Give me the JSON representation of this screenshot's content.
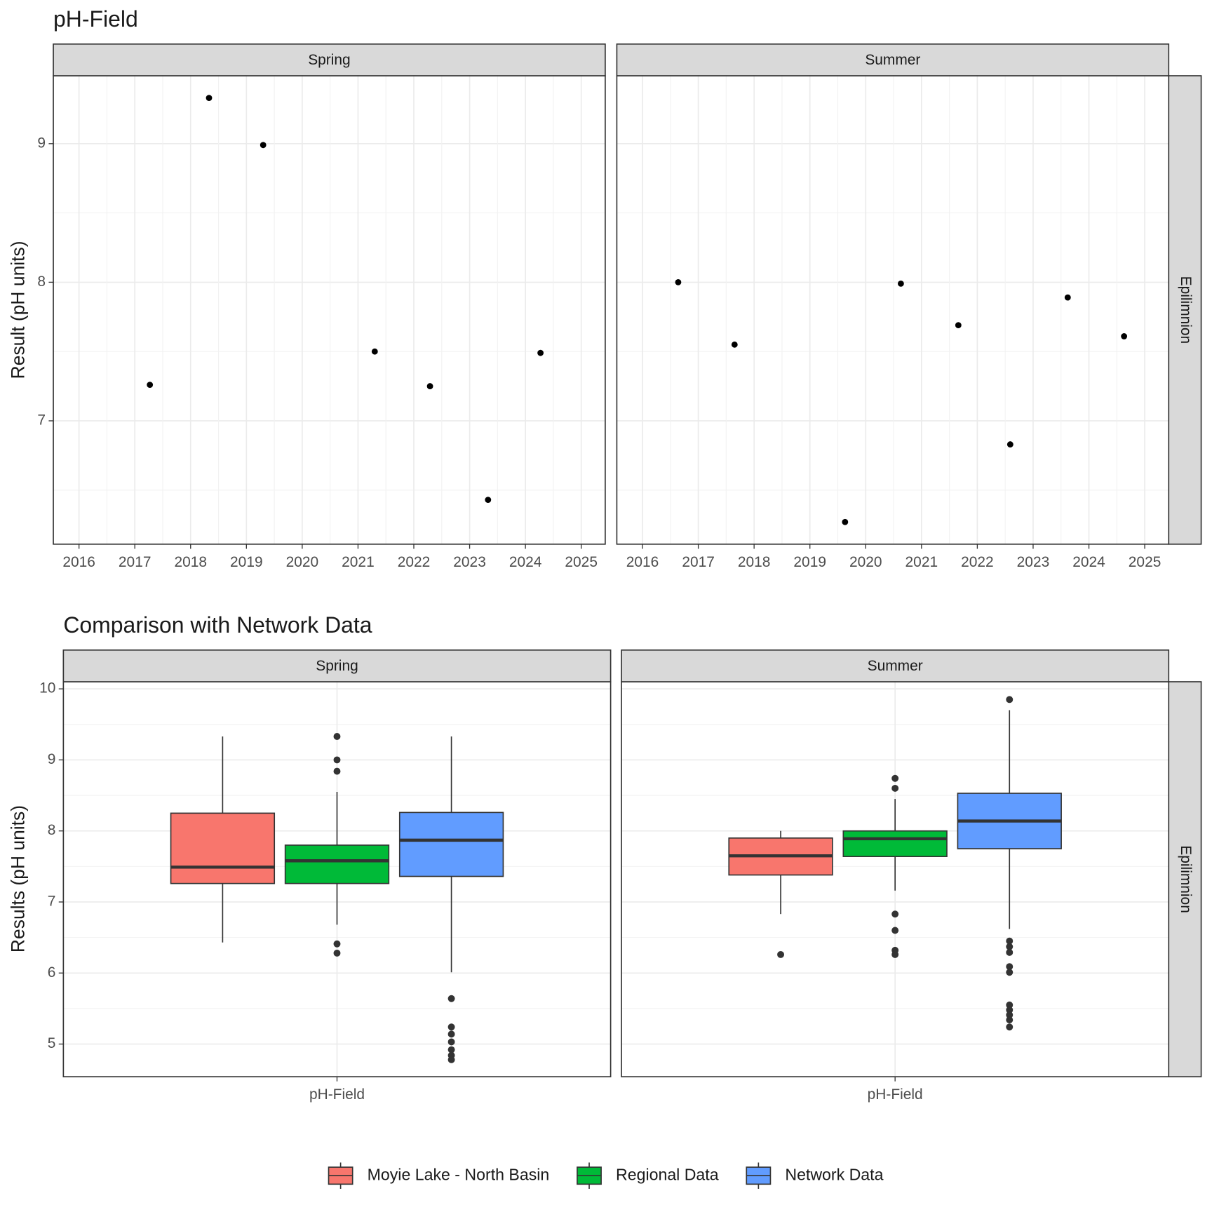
{
  "chart_data": [
    {
      "type": "scatter",
      "title": "pH-Field",
      "y_label": "Result (pH units)",
      "row_strip": "Epilimnion",
      "xlim": [
        2015.54,
        2025.43
      ],
      "xticks": [
        2016,
        2017,
        2018,
        2019,
        2020,
        2021,
        2022,
        2023,
        2024,
        2025
      ],
      "xminor": [
        2016.5,
        2017.5,
        2018.5,
        2019.5,
        2020.5,
        2021.5,
        2022.5,
        2023.5,
        2024.5
      ],
      "ylim": [
        6.11,
        9.49
      ],
      "yticks": [
        7,
        8,
        9
      ],
      "yminor": [
        6.5,
        7.5,
        8.5
      ],
      "grid": true,
      "color": "#000000",
      "panels": [
        {
          "name": "Spring",
          "x": [
            2017.27,
            2018.33,
            2019.3,
            2021.3,
            2022.29,
            2023.33,
            2024.27
          ],
          "y": [
            7.26,
            9.33,
            8.99,
            7.5,
            7.25,
            6.43,
            7.49
          ]
        },
        {
          "name": "Summer",
          "x": [
            2016.64,
            2017.65,
            2019.63,
            2020.63,
            2021.66,
            2022.59,
            2023.62,
            2024.63
          ],
          "y": [
            8.0,
            7.55,
            6.27,
            7.99,
            7.69,
            6.83,
            7.89,
            7.61
          ]
        }
      ]
    },
    {
      "type": "box",
      "title": "Comparison with Network Data",
      "y_label": "Results (pH units)",
      "row_strip": "Epilimnion",
      "ylim": [
        4.54,
        10.1
      ],
      "yticks": [
        5,
        6,
        7,
        8,
        9,
        10
      ],
      "yminor": [
        5.5,
        6.5,
        7.5,
        8.5,
        9.5
      ],
      "grid": true,
      "legend": "bottom",
      "series": [
        {
          "name": "Moyie Lake - North Basin",
          "color": "#F8766D"
        },
        {
          "name": "Regional Data",
          "color": "#00BA38"
        },
        {
          "name": "Network Data",
          "color": "#619CFF"
        }
      ],
      "panels": [
        {
          "name": "Spring",
          "category": "pH-Field",
          "boxes": [
            {
              "whisker_low": 6.43,
              "q1": 7.26,
              "median": 7.49,
              "q3": 8.25,
              "whisker_high": 9.33,
              "outliers": []
            },
            {
              "whisker_low": 6.68,
              "q1": 7.26,
              "median": 7.58,
              "q3": 7.8,
              "whisker_high": 8.55,
              "outliers": [
                9.33,
                9.0,
                8.84,
                6.41,
                6.28
              ]
            },
            {
              "whisker_low": 6.01,
              "q1": 7.36,
              "median": 7.87,
              "q3": 8.26,
              "whisker_high": 9.33,
              "outliers": [
                5.64,
                5.24,
                5.14,
                5.03,
                4.92,
                4.84,
                4.78
              ]
            }
          ]
        },
        {
          "name": "Summer",
          "category": "pH-Field",
          "boxes": [
            {
              "whisker_low": 6.83,
              "q1": 7.38,
              "median": 7.65,
              "q3": 7.9,
              "whisker_high": 8.0,
              "outliers": [
                6.26
              ]
            },
            {
              "whisker_low": 7.16,
              "q1": 7.64,
              "median": 7.89,
              "q3": 8.0,
              "whisker_high": 8.45,
              "outliers": [
                8.74,
                8.6,
                6.83,
                6.6,
                6.32,
                6.26
              ]
            },
            {
              "whisker_low": 6.62,
              "q1": 7.75,
              "median": 8.14,
              "q3": 8.53,
              "whisker_high": 9.7,
              "outliers": [
                9.85,
                6.45,
                6.37,
                6.29,
                6.09,
                6.01,
                5.55,
                5.48,
                5.41,
                5.34,
                5.24
              ]
            }
          ]
        }
      ]
    }
  ]
}
